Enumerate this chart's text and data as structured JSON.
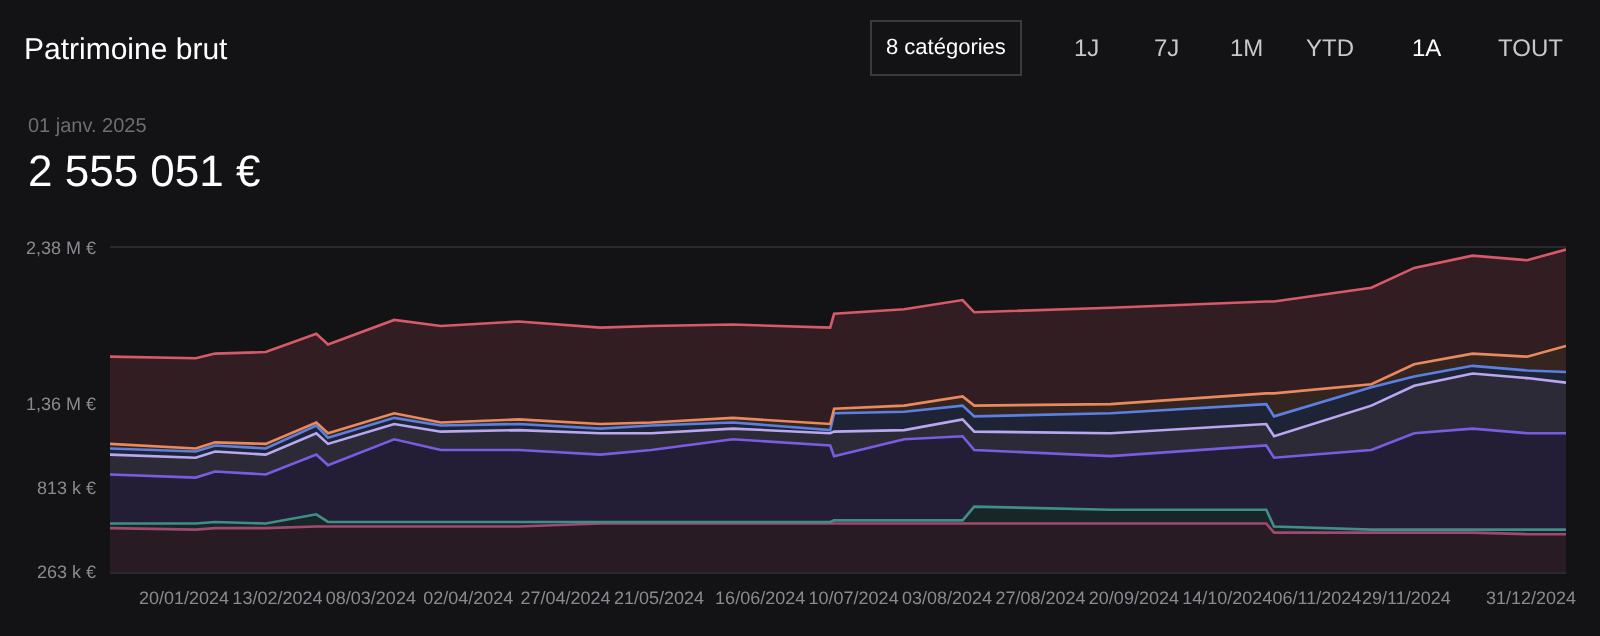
{
  "chart_data": {
    "type": "area",
    "title": "Patrimoine brut",
    "subtitle": "01 janv. 2025",
    "annotations": [
      "2 555 051 €",
      "8 catégories",
      "1J",
      "7J",
      "1M",
      "YTD",
      "1A",
      "TOUT"
    ],
    "x": [
      "2024-01-01",
      "2024-01-23",
      "2024-01-28",
      "2024-02-10",
      "2024-02-23",
      "2024-02-26",
      "2024-03-14",
      "2024-03-26",
      "2024-04-15",
      "2024-05-06",
      "2024-05-19",
      "2024-06-09",
      "2024-07-04",
      "2024-07-05",
      "2024-07-23",
      "2024-08-07",
      "2024-08-10",
      "2024-09-14",
      "2024-10-24",
      "2024-10-26",
      "2024-11-20",
      "2024-12-01",
      "2024-12-16",
      "2024-12-30",
      "2025-01-09"
    ],
    "series": [
      {
        "color": "#a04a72",
        "values": [
          550000,
          540000,
          550000,
          550000,
          560000,
          560000,
          560000,
          560000,
          560000,
          580000,
          580000,
          580000,
          580000,
          580000,
          580000,
          580000,
          580000,
          580000,
          580000,
          520000,
          520000,
          520000,
          520000,
          510000,
          510000
        ]
      },
      {
        "color": "#3f8f88",
        "values": [
          580000,
          580000,
          590000,
          580000,
          640000,
          590000,
          590000,
          590000,
          590000,
          590000,
          590000,
          590000,
          590000,
          600000,
          600000,
          600000,
          690000,
          670000,
          670000,
          560000,
          540000,
          540000,
          540000,
          540000,
          540000
        ]
      },
      {
        "color": "#7a5ce0",
        "values": [
          900000,
          880000,
          920000,
          900000,
          1030000,
          960000,
          1130000,
          1060000,
          1060000,
          1030000,
          1060000,
          1130000,
          1090000,
          1020000,
          1130000,
          1150000,
          1060000,
          1020000,
          1090000,
          1010000,
          1060000,
          1170000,
          1200000,
          1170000,
          1170000
        ]
      },
      {
        "color": "#b9a8f0",
        "values": [
          1030000,
          1010000,
          1050000,
          1030000,
          1170000,
          1100000,
          1230000,
          1180000,
          1190000,
          1170000,
          1170000,
          1200000,
          1170000,
          1180000,
          1190000,
          1260000,
          1180000,
          1170000,
          1230000,
          1150000,
          1350000,
          1480000,
          1560000,
          1530000,
          1500000
        ]
      },
      {
        "color": "#5b80e2",
        "values": [
          1070000,
          1050000,
          1090000,
          1070000,
          1220000,
          1140000,
          1270000,
          1220000,
          1230000,
          1200000,
          1220000,
          1240000,
          1190000,
          1300000,
          1310000,
          1350000,
          1280000,
          1300000,
          1360000,
          1280000,
          1470000,
          1540000,
          1610000,
          1580000,
          1570000
        ]
      },
      {
        "color": "#e88a5e",
        "values": [
          1100000,
          1070000,
          1110000,
          1100000,
          1240000,
          1170000,
          1300000,
          1240000,
          1260000,
          1230000,
          1240000,
          1270000,
          1230000,
          1330000,
          1350000,
          1410000,
          1350000,
          1360000,
          1430000,
          1430000,
          1490000,
          1620000,
          1690000,
          1670000,
          1740000
        ]
      },
      {
        "color": "#d65a6a",
        "values": [
          1670000,
          1660000,
          1690000,
          1700000,
          1820000,
          1750000,
          1910000,
          1870000,
          1900000,
          1860000,
          1870000,
          1880000,
          1860000,
          1950000,
          1980000,
          2040000,
          1960000,
          1990000,
          2030000,
          2030000,
          2120000,
          2250000,
          2330000,
          2300000,
          2370000
        ]
      }
    ],
    "xlim": [
      "2024-01-01",
      "2025-01-09"
    ],
    "xticks": [
      {
        "value": "2024-01-20",
        "label": "20/01/2024"
      },
      {
        "value": "2024-02-13",
        "label": "13/02/2024"
      },
      {
        "value": "2024-03-08",
        "label": "08/03/2024"
      },
      {
        "value": "2024-04-02",
        "label": "02/04/2024"
      },
      {
        "value": "2024-04-27",
        "label": "27/04/2024"
      },
      {
        "value": "2024-05-21",
        "label": "21/05/2024"
      },
      {
        "value": "2024-06-16",
        "label": "16/06/2024"
      },
      {
        "value": "2024-07-10",
        "label": "10/07/2024"
      },
      {
        "value": "2024-08-03",
        "label": "03/08/2024"
      },
      {
        "value": "2024-08-27",
        "label": "27/08/2024"
      },
      {
        "value": "2024-09-20",
        "label": "20/09/2024"
      },
      {
        "value": "2024-10-14",
        "label": "14/10/2024"
      },
      {
        "value": "2024-11-06",
        "label": "06/11/2024"
      },
      {
        "value": "2024-11-29",
        "label": "29/11/2024"
      },
      {
        "value": "2024-12-31",
        "label": "31/12/2024"
      }
    ],
    "ylim": [
      263000,
      2380000
    ],
    "yticks": [
      {
        "value": 263000,
        "label": "263 k €"
      },
      {
        "value": 813000,
        "label": "813 k €"
      },
      {
        "value": 1360000,
        "label": "1,36 M €"
      },
      {
        "value": 2380000,
        "label": "2,38 M €"
      }
    ],
    "grid": false
  }
}
